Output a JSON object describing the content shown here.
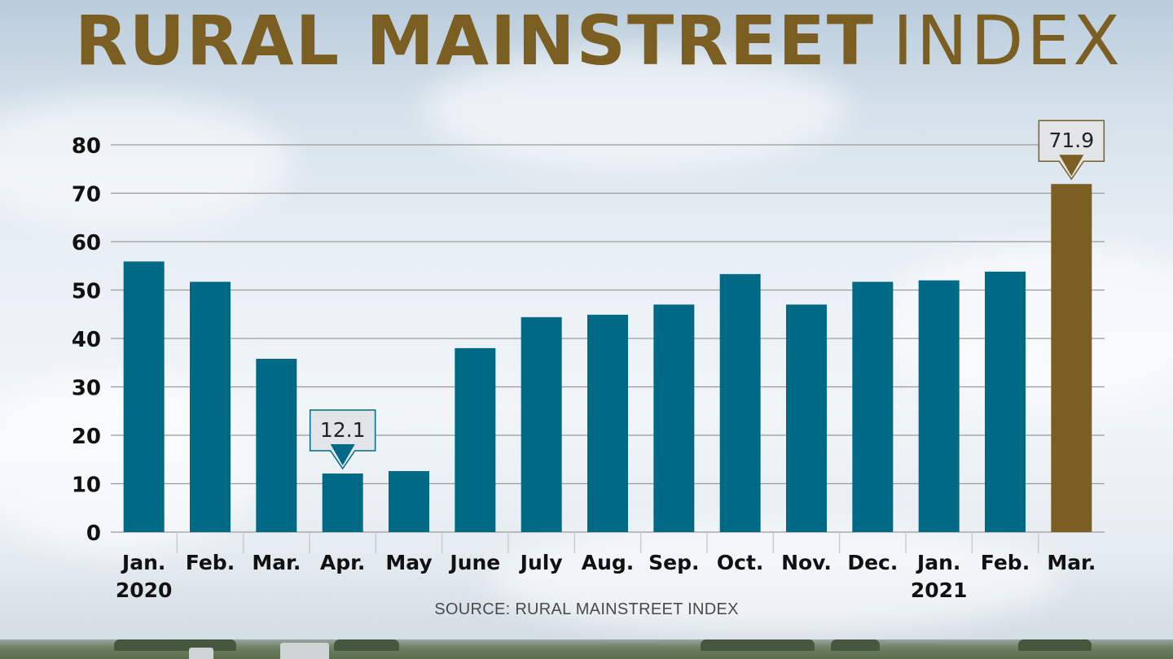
{
  "header": {
    "title_bold": "RURAL MAINSTREET",
    "title_light": "INDEX"
  },
  "source": "SOURCE: RURAL MAINSTREET INDEX",
  "chart_data": {
    "type": "bar",
    "title": "RURAL MAINSTREET INDEX",
    "xlabel": "",
    "ylabel": "",
    "ylim": [
      0,
      80
    ],
    "yticks": [
      0,
      10,
      20,
      30,
      40,
      50,
      60,
      70,
      80
    ],
    "grid": true,
    "categories": [
      "Jan.",
      "Feb.",
      "Mar.",
      "Apr.",
      "May",
      "June",
      "July",
      "Aug.",
      "Sep.",
      "Oct.",
      "Nov.",
      "Dec.",
      "Jan.",
      "Feb.",
      "Mar."
    ],
    "category_years": [
      "2020",
      "",
      "",
      "",
      "",
      "",
      "",
      "",
      "",
      "",
      "",
      "",
      "2021",
      "",
      ""
    ],
    "values": [
      55.9,
      51.7,
      35.8,
      12.1,
      12.6,
      38.0,
      44.4,
      44.9,
      47.0,
      53.3,
      47.0,
      51.7,
      52.0,
      53.8,
      71.9
    ],
    "highlight_index": 14,
    "callouts": [
      {
        "index": 3,
        "label": "12.1"
      },
      {
        "index": 14,
        "label": "71.9"
      }
    ],
    "colors": {
      "bar": "#006a86",
      "highlight": "#7b5e22",
      "grid": "#9a9a9a",
      "text": "#111111"
    }
  }
}
